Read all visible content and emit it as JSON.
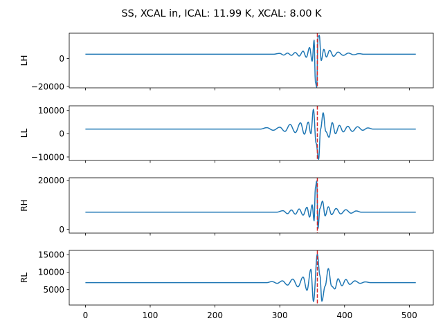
{
  "chart_data": {
    "type": "line",
    "title": "SS, XCAL in, ICAL: 11.99 K, XCAL: 8.00 K",
    "colors": {
      "series": "#1f77b4",
      "marker": "#d62728"
    },
    "xlim": [
      -25,
      537
    ],
    "xticks": [
      0,
      100,
      200,
      300,
      400,
      500
    ],
    "marker_x": 358,
    "panels": [
      {
        "ylabel": "LH",
        "ylim": [
          -21000,
          18000
        ],
        "yticks": [
          -20000,
          0
        ],
        "baseline": 3000,
        "keypoints": [
          [
            0,
            3000
          ],
          [
            290,
            3000
          ],
          [
            300,
            3600
          ],
          [
            306,
            2400
          ],
          [
            312,
            3800
          ],
          [
            318,
            2200
          ],
          [
            324,
            4200
          ],
          [
            330,
            1700
          ],
          [
            336,
            5200
          ],
          [
            341,
            800
          ],
          [
            346,
            7800
          ],
          [
            350,
            -2000
          ],
          [
            353,
            13000
          ],
          [
            355,
            -17000
          ],
          [
            357,
            -20500
          ],
          [
            359,
            15000
          ],
          [
            361,
            16500
          ],
          [
            364,
            -1500
          ],
          [
            368,
            6500
          ],
          [
            372,
            1000
          ],
          [
            377,
            5800
          ],
          [
            383,
            1500
          ],
          [
            390,
            4500
          ],
          [
            398,
            2200
          ],
          [
            406,
            3800
          ],
          [
            414,
            2600
          ],
          [
            422,
            3400
          ],
          [
            430,
            3000
          ],
          [
            510,
            3000
          ]
        ]
      },
      {
        "ylabel": "LL",
        "ylim": [
          -11500,
          12000
        ],
        "yticks": [
          -10000,
          0,
          10000
        ],
        "baseline": 2000,
        "keypoints": [
          [
            0,
            2000
          ],
          [
            270,
            2000
          ],
          [
            280,
            2600
          ],
          [
            290,
            1500
          ],
          [
            300,
            2800
          ],
          [
            308,
            1000
          ],
          [
            316,
            4000
          ],
          [
            324,
            500
          ],
          [
            332,
            4700
          ],
          [
            338,
            -200
          ],
          [
            344,
            5000
          ],
          [
            348,
            0
          ],
          [
            352,
            10500
          ],
          [
            356,
            -4000
          ],
          [
            360,
            -11000
          ],
          [
            363,
            2000
          ],
          [
            367,
            9000
          ],
          [
            371,
            1000
          ],
          [
            376,
            -1500
          ],
          [
            381,
            4800
          ],
          [
            386,
            0
          ],
          [
            392,
            3600
          ],
          [
            398,
            800
          ],
          [
            405,
            3200
          ],
          [
            412,
            1000
          ],
          [
            420,
            3000
          ],
          [
            428,
            1500
          ],
          [
            436,
            2500
          ],
          [
            444,
            2000
          ],
          [
            510,
            2000
          ]
        ]
      },
      {
        "ylabel": "RH",
        "ylim": [
          -1500,
          21000
        ],
        "yticks": [
          0,
          20000
        ],
        "baseline": 7000,
        "keypoints": [
          [
            0,
            7000
          ],
          [
            295,
            7000
          ],
          [
            305,
            7600
          ],
          [
            312,
            6400
          ],
          [
            318,
            7900
          ],
          [
            324,
            6200
          ],
          [
            330,
            8300
          ],
          [
            336,
            5800
          ],
          [
            342,
            9000
          ],
          [
            346,
            5000
          ],
          [
            350,
            10000
          ],
          [
            353,
            3500
          ],
          [
            355,
            17000
          ],
          [
            357,
            19700
          ],
          [
            359,
            400
          ],
          [
            362,
            8500
          ],
          [
            366,
            11500
          ],
          [
            370,
            5500
          ],
          [
            375,
            9200
          ],
          [
            380,
            6000
          ],
          [
            387,
            8500
          ],
          [
            394,
            6300
          ],
          [
            402,
            8000
          ],
          [
            410,
            6600
          ],
          [
            418,
            7500
          ],
          [
            426,
            7000
          ],
          [
            510,
            7000
          ]
        ]
      },
      {
        "ylabel": "RL",
        "ylim": [
          600,
          16200
        ],
        "yticks": [
          5000,
          10000,
          15000
        ],
        "baseline": 7000,
        "keypoints": [
          [
            0,
            7000
          ],
          [
            280,
            7000
          ],
          [
            288,
            7300
          ],
          [
            296,
            6800
          ],
          [
            304,
            7500
          ],
          [
            312,
            6300
          ],
          [
            320,
            8000
          ],
          [
            328,
            5800
          ],
          [
            336,
            8600
          ],
          [
            342,
            4800
          ],
          [
            348,
            10800
          ],
          [
            352,
            1600
          ],
          [
            358,
            15100
          ],
          [
            362,
            9000
          ],
          [
            365,
            1700
          ],
          [
            370,
            6000
          ],
          [
            375,
            11000
          ],
          [
            380,
            6000
          ],
          [
            385,
            5200
          ],
          [
            390,
            8100
          ],
          [
            396,
            6100
          ],
          [
            402,
            7900
          ],
          [
            408,
            6500
          ],
          [
            416,
            7500
          ],
          [
            424,
            6800
          ],
          [
            432,
            7200
          ],
          [
            440,
            7000
          ],
          [
            510,
            7000
          ]
        ]
      }
    ]
  }
}
